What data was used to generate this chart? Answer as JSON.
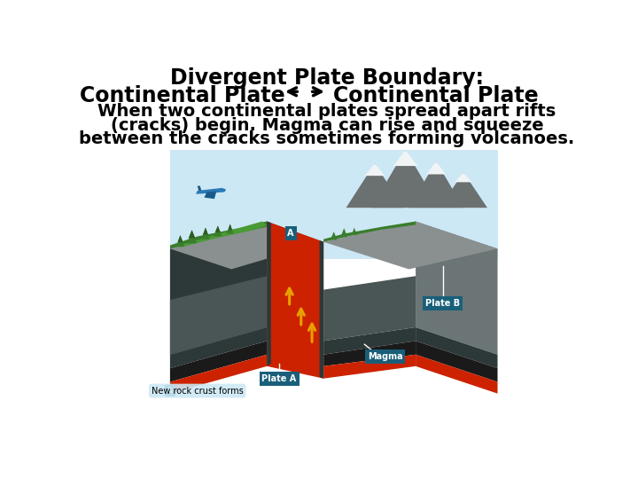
{
  "title_line1": "Divergent Plate Boundary:",
  "title_line2_left": "Continental Plate",
  "title_line2_right": "Continental Plate",
  "body_text_1": "When two continental plates spread apart rifts",
  "body_text_2": "(cracks) begin. Magma can rise and squeeze",
  "body_text_3": "between the cracks sometimes forming volcanoes.",
  "bg_color": "#ffffff",
  "title_font_size": 17,
  "subtitle_font_size": 17,
  "body_font_size": 14,
  "plate_a_label": "Plate A",
  "plate_b_label": "Plate B",
  "magma_label": "Magma",
  "a_label": "A",
  "legend_label": "New rock crust forms",
  "label_bg_color": "#1a5f7a",
  "label_text_color": "#ffffff",
  "sky_color": "#cde8f5",
  "green_dark": "#3a7d2c",
  "green_med": "#4a9a35",
  "rock_gray": "#8a9090",
  "rock_med": "#6b7575",
  "rock_dark": "#4a5555",
  "rock_darker": "#2d3838",
  "magma_color": "#cc2200",
  "black_layer": "#1a1a1a",
  "mountain_gray": "#6b7070",
  "mountain_dark": "#4a5050",
  "snow_color": "#f0f4f5",
  "plane_blue": "#2a7ab5",
  "plane_dark": "#1a5a8a"
}
